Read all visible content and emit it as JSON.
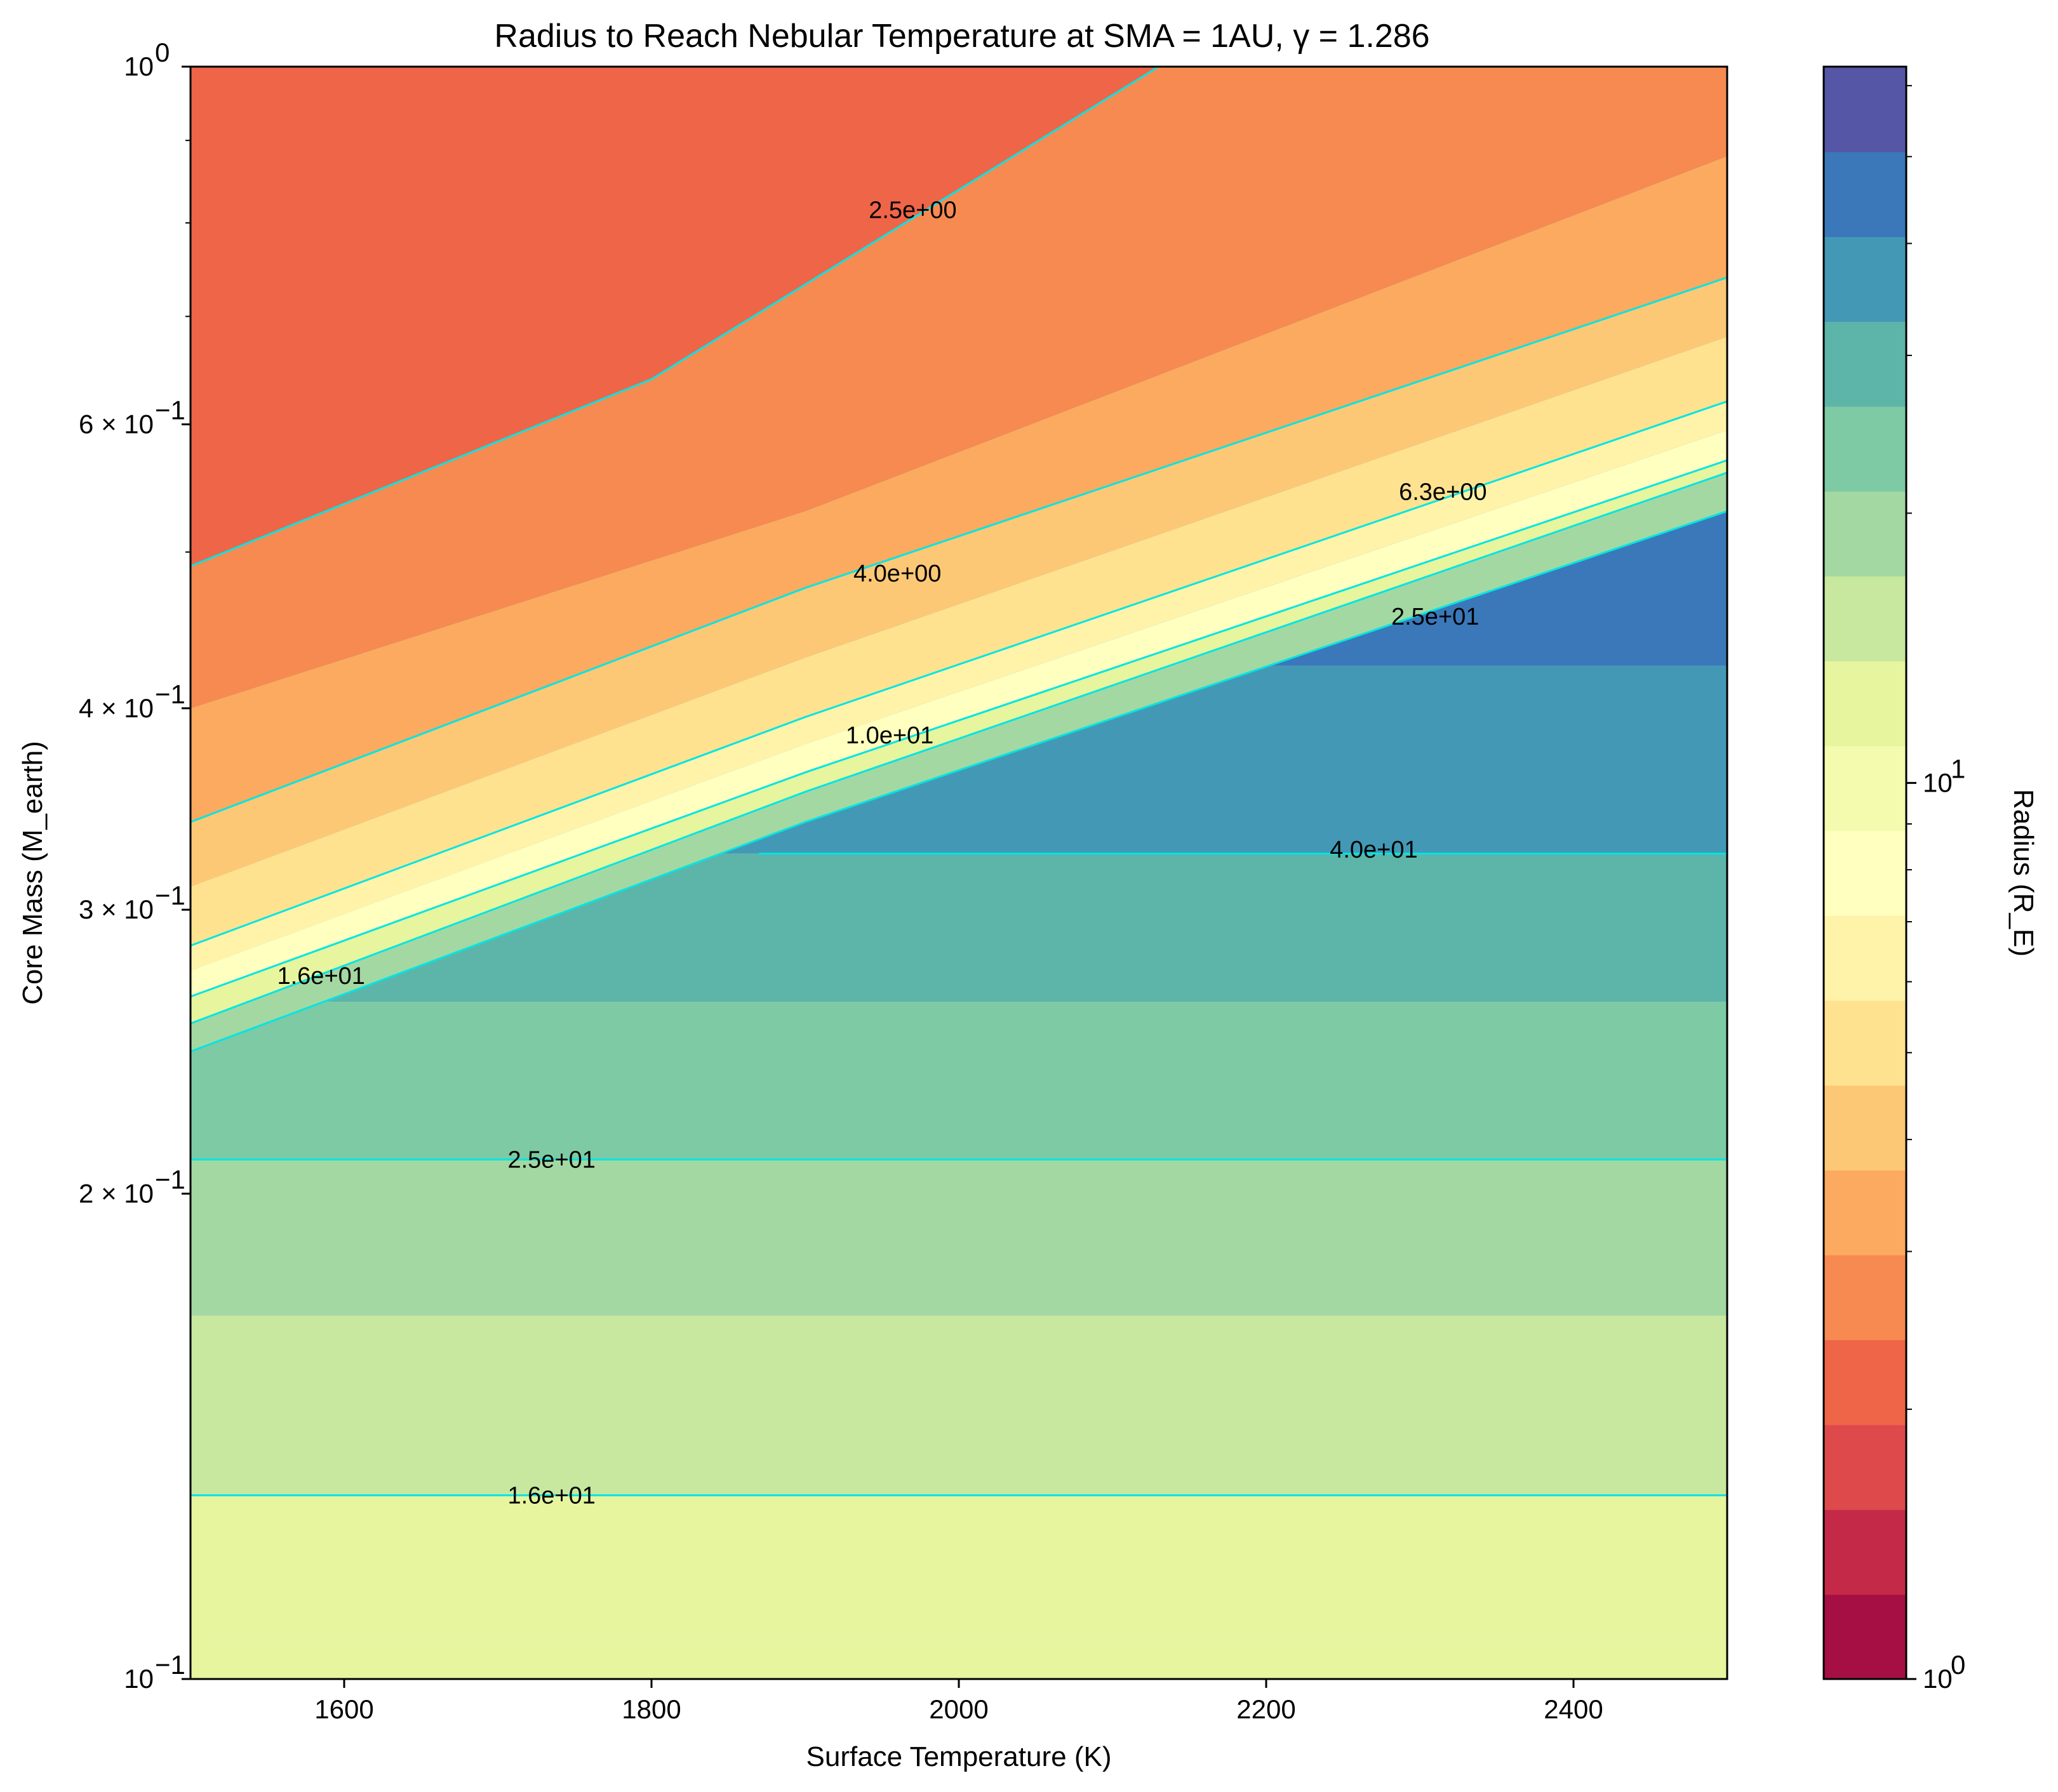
{
  "chart_data": {
    "type": "contour",
    "title": "Radius to Reach Nebular Temperature at SMA = 1AU, γ = 1.286",
    "xlabel": "Surface Temperature (K)",
    "ylabel": "Core Mass (M_earth)",
    "xlim": [
      1500,
      2500
    ],
    "ylim": [
      0.1,
      1.0
    ],
    "yscale": "log",
    "x_ticks": [
      {
        "value": 1600,
        "label": "1600"
      },
      {
        "value": 1800,
        "label": "1800"
      },
      {
        "value": 2000,
        "label": "2000"
      },
      {
        "value": 2200,
        "label": "2200"
      },
      {
        "value": 2400,
        "label": "2400"
      }
    ],
    "y_ticks": [
      {
        "value": 1.0,
        "label": "10",
        "exp": "0"
      },
      {
        "value": 0.6,
        "label": "6 × 10",
        "exp": "−1"
      },
      {
        "value": 0.4,
        "label": "4 × 10",
        "exp": "−1"
      },
      {
        "value": 0.3,
        "label": "3 × 10",
        "exp": "−1"
      },
      {
        "value": 0.2,
        "label": "2 × 10",
        "exp": "−1"
      },
      {
        "value": 0.1,
        "label": "10",
        "exp": "−1"
      }
    ],
    "colorbar": {
      "label": "Radius (R_E)",
      "scale": "log",
      "range": [
        1.0,
        63.0
      ],
      "tick_labels": [
        {
          "value": 1,
          "label": "10",
          "exp": "0"
        },
        {
          "value": 10,
          "label": "10",
          "exp": "1"
        }
      ],
      "level_colors": [
        "#a50f44",
        "#c42a47",
        "#de4a4c",
        "#ef6548",
        "#f68a51",
        "#fbaa5f",
        "#fdc876",
        "#fee28f",
        "#fff3aa",
        "#ffffbf",
        "#f4fbaf",
        "#e6f59e",
        "#c7e89e",
        "#a4d8a2",
        "#7dcaa4",
        "#5db5a9",
        "#4399b5",
        "#3a78b9",
        "#5656a6"
      ]
    },
    "contour_lines": [
      {
        "level": "2.5e+00",
        "color": "#00e5e5",
        "points": [
          [
            1500,
            0.49
          ],
          [
            1800,
            0.64
          ],
          [
            2130,
            1.0
          ]
        ]
      },
      {
        "level": "4.0e+00",
        "color": "#00e5e5",
        "points": [
          [
            1500,
            0.34
          ],
          [
            1900,
            0.475
          ],
          [
            2500,
            0.74
          ]
        ]
      },
      {
        "level": "6.3e+00",
        "color": "#00e5e5",
        "points": [
          [
            1500,
            0.285
          ],
          [
            1900,
            0.395
          ],
          [
            2500,
            0.62
          ]
        ]
      },
      {
        "level": "1.0e+01",
        "color": "#00e5e5",
        "points": [
          [
            1500,
            0.265
          ],
          [
            1900,
            0.365
          ],
          [
            2500,
            0.57
          ]
        ]
      },
      {
        "level": "1.6e+01",
        "color": "#00e5e5",
        "points": [
          [
            1500,
            0.255
          ],
          [
            1900,
            0.355
          ],
          [
            2500,
            0.56
          ]
        ]
      },
      {
        "level": "2.5e+01",
        "color": "#00e5e5",
        "points": [
          [
            1500,
            0.245
          ],
          [
            1900,
            0.34
          ],
          [
            2500,
            0.53
          ]
        ]
      },
      {
        "level": "4.0e+01",
        "color": "#00e5e5",
        "points": [
          [
            1870,
            0.325
          ],
          [
            2500,
            0.325
          ]
        ]
      },
      {
        "level": "2.5e+01",
        "color": "#00e5e5",
        "points": [
          [
            1500,
            0.21
          ],
          [
            2500,
            0.21
          ]
        ]
      },
      {
        "level": "1.6e+01",
        "color": "#00e5e5",
        "points": [
          [
            1500,
            0.13
          ],
          [
            2500,
            0.13
          ]
        ]
      }
    ],
    "contour_labels": [
      {
        "text": "2.5e+00",
        "x": 1970,
        "y": 0.815
      },
      {
        "text": "4.0e+00",
        "x": 1960,
        "y": 0.485
      },
      {
        "text": "6.3e+00",
        "x": 2315,
        "y": 0.545
      },
      {
        "text": "1.0e+01",
        "x": 1955,
        "y": 0.385
      },
      {
        "text": "2.5e+01",
        "x": 2310,
        "y": 0.456
      },
      {
        "text": "4.0e+01",
        "x": 2270,
        "y": 0.327
      },
      {
        "text": "1.6e+01",
        "x": 1585,
        "y": 0.273
      },
      {
        "text": "2.5e+01",
        "x": 1735,
        "y": 0.21
      },
      {
        "text": "1.6e+01",
        "x": 1735,
        "y": 0.13
      }
    ],
    "regions": [
      {
        "level_index": 3,
        "description_free": true,
        "boundary": "band",
        "lower": [
          [
            1500,
            0.49
          ],
          [
            1800,
            0.64
          ],
          [
            2130,
            1.0
          ]
        ],
        "upper": "top"
      },
      {
        "level_index": 4,
        "boundary": "band",
        "lower": [
          [
            1500,
            0.4
          ],
          [
            1900,
            0.53
          ],
          [
            2500,
            0.88
          ]
        ],
        "upper": [
          [
            1500,
            0.49
          ],
          [
            1800,
            0.64
          ],
          [
            2130,
            1.0
          ]
        ]
      },
      {
        "level_index": 5,
        "boundary": "band",
        "lower": [
          [
            1500,
            0.34
          ],
          [
            1900,
            0.475
          ],
          [
            2500,
            0.74
          ]
        ],
        "upper": [
          [
            1500,
            0.4
          ],
          [
            1900,
            0.53
          ],
          [
            2500,
            0.88
          ]
        ]
      },
      {
        "level_index": 6,
        "boundary": "band",
        "lower": [
          [
            1500,
            0.31
          ],
          [
            1900,
            0.43
          ],
          [
            2500,
            0.68
          ]
        ],
        "upper": [
          [
            1500,
            0.34
          ],
          [
            1900,
            0.475
          ],
          [
            2500,
            0.74
          ]
        ]
      },
      {
        "level_index": 7,
        "boundary": "band",
        "lower": [
          [
            1500,
            0.285
          ],
          [
            1900,
            0.395
          ],
          [
            2500,
            0.62
          ]
        ],
        "upper": [
          [
            1500,
            0.31
          ],
          [
            1900,
            0.43
          ],
          [
            2500,
            0.68
          ]
        ]
      },
      {
        "level_index": 8,
        "boundary": "band",
        "lower": [
          [
            1500,
            0.275
          ],
          [
            1900,
            0.38
          ],
          [
            2500,
            0.595
          ]
        ],
        "upper": [
          [
            1500,
            0.285
          ],
          [
            1900,
            0.395
          ],
          [
            2500,
            0.62
          ]
        ]
      },
      {
        "level_index": 9,
        "boundary": "band",
        "lower": [
          [
            1500,
            0.265
          ],
          [
            1900,
            0.365
          ],
          [
            2500,
            0.57
          ]
        ],
        "upper": [
          [
            1500,
            0.275
          ],
          [
            1900,
            0.38
          ],
          [
            2500,
            0.595
          ]
        ]
      },
      {
        "level_index": 11,
        "boundary": "band",
        "lower": [
          [
            1500,
            0.255
          ],
          [
            1900,
            0.355
          ],
          [
            2500,
            0.56
          ]
        ],
        "upper": [
          [
            1500,
            0.265
          ],
          [
            1900,
            0.365
          ],
          [
            2500,
            0.57
          ]
        ]
      },
      {
        "level_index": 13,
        "boundary": "band",
        "lower": [
          [
            1500,
            0.245
          ],
          [
            1900,
            0.34
          ],
          [
            2500,
            0.53
          ]
        ],
        "upper": [
          [
            1500,
            0.255
          ],
          [
            1900,
            0.355
          ],
          [
            2500,
            0.56
          ]
        ]
      }
    ],
    "flat_bands": [
      {
        "level_index": 11,
        "y_from": 0.1,
        "y_to": 0.105
      },
      {
        "level_index": 11,
        "y_from": 0.105,
        "y_to": 0.13
      },
      {
        "level_index": 12,
        "y_from": 0.13,
        "y_to": 0.168
      },
      {
        "level_index": 13,
        "y_from": 0.168,
        "y_to": 0.21
      },
      {
        "level_index": 14,
        "y_from": 0.21,
        "y_to": 0.263
      },
      {
        "level_index": 15,
        "y_from": 0.263,
        "y_to": 0.325
      },
      {
        "level_index": 16,
        "y_from": 0.325,
        "y_to": 0.425
      },
      {
        "level_index": 17,
        "y_from": 0.425,
        "y_to": 1.0
      }
    ]
  }
}
